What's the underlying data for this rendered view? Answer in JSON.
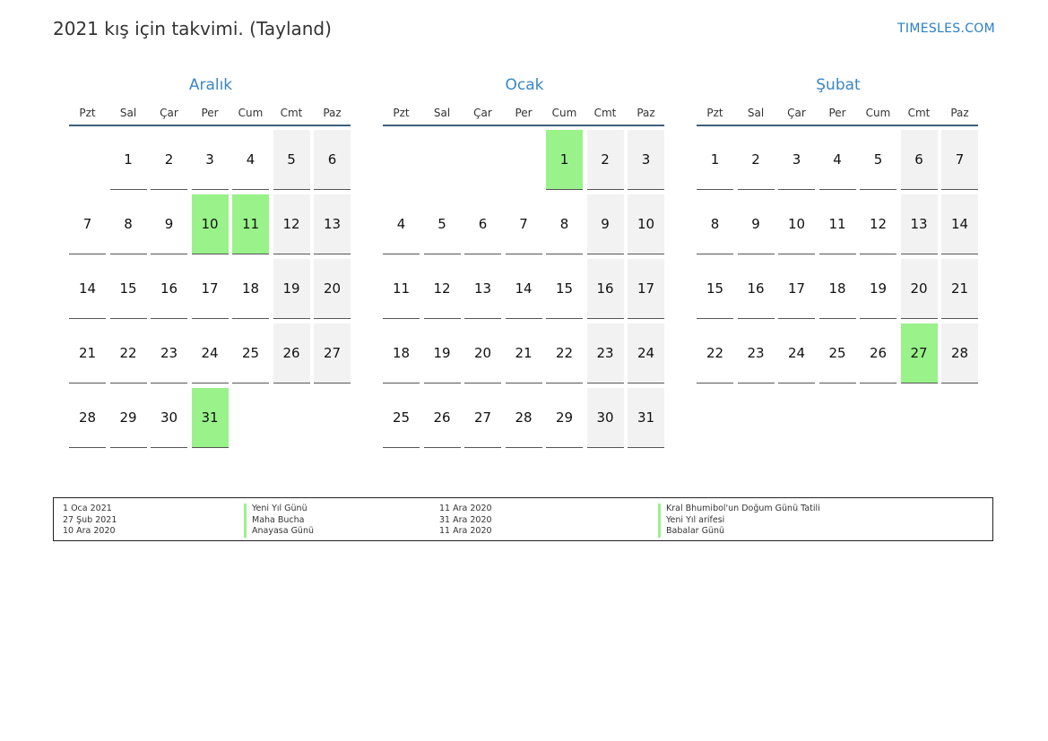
{
  "header": {
    "title": "2021 kış için takvimi. (Tayland)",
    "site": "TIMESLES.COM"
  },
  "weekdays": [
    "Pzt",
    "Sal",
    "Çar",
    "Per",
    "Cum",
    "Cmt",
    "Paz"
  ],
  "months": [
    {
      "name": "Aralık",
      "cells": [
        "",
        "1",
        "2",
        "3",
        "4",
        "5",
        "6",
        "7",
        "8",
        "9",
        "10",
        "11",
        "12",
        "13",
        "14",
        "15",
        "16",
        "17",
        "18",
        "19",
        "20",
        "21",
        "22",
        "23",
        "24",
        "25",
        "26",
        "27",
        "28",
        "29",
        "30",
        "31",
        "",
        "",
        ""
      ],
      "holidays": [
        "10",
        "11",
        "31"
      ]
    },
    {
      "name": "Ocak",
      "cells": [
        "",
        "",
        "",
        "",
        "1",
        "2",
        "3",
        "4",
        "5",
        "6",
        "7",
        "8",
        "9",
        "10",
        "11",
        "12",
        "13",
        "14",
        "15",
        "16",
        "17",
        "18",
        "19",
        "20",
        "21",
        "22",
        "23",
        "24",
        "25",
        "26",
        "27",
        "28",
        "29",
        "30",
        "31"
      ],
      "holidays": [
        "1"
      ]
    },
    {
      "name": "Şubat",
      "cells": [
        "1",
        "2",
        "3",
        "4",
        "5",
        "6",
        "7",
        "8",
        "9",
        "10",
        "11",
        "12",
        "13",
        "14",
        "15",
        "16",
        "17",
        "18",
        "19",
        "20",
        "21",
        "22",
        "23",
        "24",
        "25",
        "26",
        "27",
        "28"
      ],
      "holidays": [
        "27"
      ]
    }
  ],
  "legend": [
    {
      "date": "1 Oca 2021",
      "name": "Yeni Yıl Günü"
    },
    {
      "date": "27 Şub 2021",
      "name": "Maha Bucha"
    },
    {
      "date": "10 Ara 2020",
      "name": "Anayasa Günü"
    },
    {
      "date": "11 Ara 2020",
      "name": "Kral Bhumibol'un Doğum Günü Tatili"
    },
    {
      "date": "31 Ara 2020",
      "name": "Yeni Yıl arifesi"
    },
    {
      "date": "11 Ara 2020",
      "name": "Babalar Günü"
    }
  ],
  "colors": {
    "holiday": "#99f28a",
    "weekend": "#f2f2f2",
    "accent": "#3a86c4"
  }
}
